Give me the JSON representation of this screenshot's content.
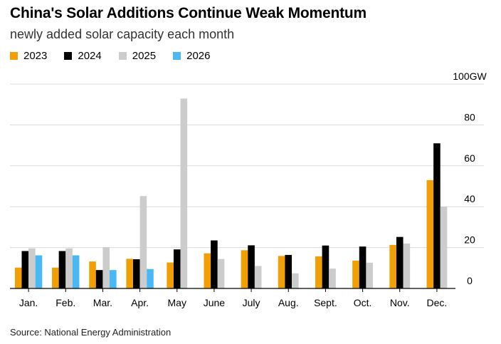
{
  "title": "China's Solar Additions Continue Weak Momentum",
  "subtitle": "newly added solar capacity each month",
  "source": "Source: National Energy Administration",
  "legend": [
    {
      "label": "2023",
      "color": "#f29f05"
    },
    {
      "label": "2024",
      "color": "#000000"
    },
    {
      "label": "2025",
      "color": "#cccccc"
    },
    {
      "label": "2026",
      "color": "#4ab8f2"
    }
  ],
  "chart_data": {
    "type": "bar",
    "categories": [
      "Jan.",
      "Feb.",
      "Mar.",
      "Apr.",
      "May",
      "June",
      "July",
      "Aug.",
      "Sept.",
      "Oct.",
      "Nov.",
      "Dec."
    ],
    "series": [
      {
        "name": "2023",
        "color": "#f29f05",
        "values": [
          10.2,
          10.2,
          13.2,
          14.5,
          12.7,
          17.2,
          18.7,
          15.9,
          15.7,
          13.6,
          21.3,
          53
        ]
      },
      {
        "name": "2024",
        "color": "#000000",
        "values": [
          18.3,
          18.3,
          9,
          14.3,
          19.1,
          23.5,
          21.1,
          16.4,
          21,
          20.5,
          25.2,
          71
        ]
      },
      {
        "name": "2025",
        "color": "#cccccc",
        "values": [
          19.6,
          19.6,
          20.2,
          45.2,
          92.9,
          14.4,
          11,
          7.4,
          9.7,
          12.6,
          22,
          40
        ]
      },
      {
        "name": "2026",
        "color": "#4ab8f2",
        "values": [
          16.2,
          16.2,
          9,
          9.5,
          null,
          null,
          null,
          null,
          null,
          null,
          null,
          null
        ]
      }
    ],
    "y_ticks": [
      0,
      20,
      40,
      60,
      80,
      100
    ],
    "y_tick_labels": [
      "0",
      "20",
      "40",
      "60",
      "80",
      "100GW"
    ],
    "ylim": [
      0,
      100
    ],
    "grid": true,
    "y_axis_side": "right",
    "legend_position": "top-left"
  }
}
